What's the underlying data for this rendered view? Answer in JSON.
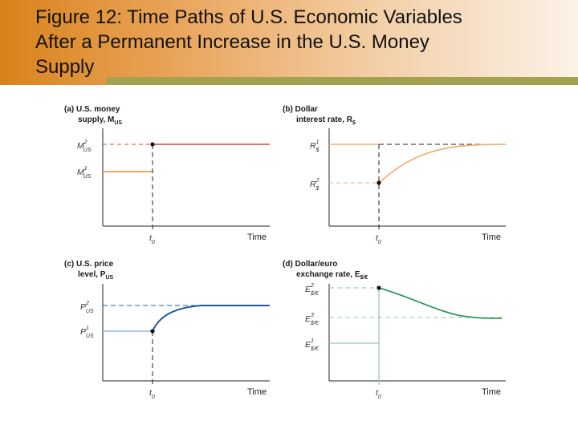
{
  "slide": {
    "title": "Figure 12: Time Paths of U.S. Economic Variables\nAfter a Permanent Increase in the U.S. Money\nSupply"
  },
  "panels": {
    "a": {
      "title_line1": "(a) U.S. money",
      "title_line2": "supply, M",
      "title_sub": "US",
      "level_high": {
        "letter": "M",
        "sup": "2",
        "sub": "US"
      },
      "level_low": {
        "letter": "M",
        "sup": "1",
        "sub": "US"
      },
      "t0": {
        "letter": "t",
        "sub": "0"
      },
      "time_label": "Time",
      "high_color": "#d9443a",
      "low_color": "#e88a2f"
    },
    "b": {
      "title_line1": "(b) Dollar",
      "title_line2": "interest rate, R",
      "title_sub": "$",
      "level_high": {
        "letter": "R",
        "sup": "1",
        "sub": "$"
      },
      "level_low": {
        "letter": "R",
        "sup": "2",
        "sub": "$"
      },
      "t0": {
        "letter": "t",
        "sub": "0"
      },
      "time_label": "Time",
      "line_color": "#f0b07a"
    },
    "c": {
      "title_line1": "(c) U.S. price",
      "title_line2": "level, P",
      "title_sub": "US",
      "level_high": {
        "letter": "P",
        "sup": "2",
        "sub": "US"
      },
      "level_low": {
        "letter": "P",
        "sup": "1",
        "sub": "US"
      },
      "t0": {
        "letter": "t",
        "sub": "0"
      },
      "time_label": "Time",
      "line_color": "#1f5a9c",
      "guide_color": "#7fa6cf"
    },
    "d": {
      "title_line1": "(d) Dollar/euro",
      "title_line2": "exchange rate, E",
      "title_sub": "$/€",
      "level_top": {
        "letter": "E",
        "sup": "2",
        "sub": "$/€"
      },
      "level_mid": {
        "letter": "E",
        "sup": "3",
        "sub": "$/€"
      },
      "level_bottom": {
        "letter": "E",
        "sup": "1",
        "sub": "$/€"
      },
      "t0": {
        "letter": "t",
        "sub": "0"
      },
      "time_label": "Time",
      "line_color": "#2e9a5e",
      "guide_color": "#8ccaa6"
    }
  }
}
